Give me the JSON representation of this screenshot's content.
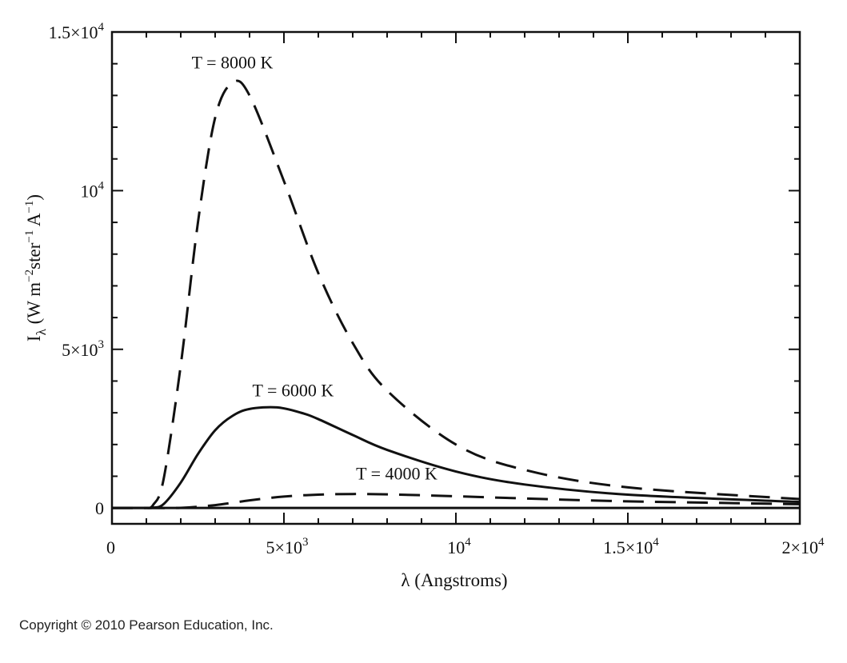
{
  "chart_data": {
    "type": "line",
    "title": "",
    "xlabel": "λ (Angstroms)",
    "ylabel": {
      "prefix": "I",
      "subscript": "λ",
      "units": "(W m^-2 ster^-1 A^-1)"
    },
    "xlim": [
      0,
      20000
    ],
    "ylim": [
      -500,
      15000
    ],
    "x_ticks": [
      {
        "value": 0,
        "base": "0",
        "sup": ""
      },
      {
        "value": 5000,
        "base": "5×10",
        "sup": "3"
      },
      {
        "value": 10000,
        "base": "10",
        "sup": "4"
      },
      {
        "value": 15000,
        "base": "1.5×10",
        "sup": "4"
      },
      {
        "value": 20000,
        "base": "2×10",
        "sup": "4"
      }
    ],
    "y_ticks": [
      {
        "value": 0,
        "base": "0",
        "sup": ""
      },
      {
        "value": 5000,
        "base": "5×10",
        "sup": "3"
      },
      {
        "value": 10000,
        "base": "10",
        "sup": "4"
      },
      {
        "value": 15000,
        "base": "1.5×10",
        "sup": "4"
      }
    ],
    "grid": false,
    "series": [
      {
        "name": "T = 8000 K",
        "style": "dashed",
        "color": "#111111",
        "x": [
          1000,
          1200,
          1500,
          2000,
          2500,
          3000,
          3500,
          4000,
          5000,
          6000,
          7000,
          8000,
          10000,
          12000,
          15000,
          20000
        ],
        "values": [
          0,
          100,
          900,
          4500,
          9000,
          12300,
          13400,
          13000,
          10300,
          7400,
          5200,
          3700,
          2000,
          1200,
          650,
          280
        ]
      },
      {
        "name": "T = 6000 K",
        "style": "solid",
        "color": "#111111",
        "x": [
          1000,
          1200,
          1500,
          2000,
          2500,
          3000,
          3500,
          4000,
          4800,
          5500,
          6000,
          7000,
          8000,
          10000,
          12000,
          15000,
          20000
        ],
        "values": [
          0,
          10,
          120,
          800,
          1700,
          2450,
          2900,
          3120,
          3170,
          3000,
          2800,
          2300,
          1830,
          1150,
          740,
          420,
          190
        ]
      },
      {
        "name": "T = 4000 K",
        "style": "dashed",
        "color": "#111111",
        "x": [
          1000,
          2000,
          3000,
          4000,
          5000,
          6000,
          7000,
          8000,
          10000,
          12000,
          15000,
          20000
        ],
        "values": [
          0,
          5,
          90,
          240,
          360,
          420,
          440,
          430,
          370,
          300,
          210,
          120
        ]
      }
    ],
    "annotations": [
      {
        "text": "T = 8000 K",
        "series": 0
      },
      {
        "text": "T = 6000 K",
        "series": 1
      },
      {
        "text": "T = 4000 K",
        "series": 2
      }
    ]
  },
  "copyright": "Copyright © 2010 Pearson Education, Inc."
}
